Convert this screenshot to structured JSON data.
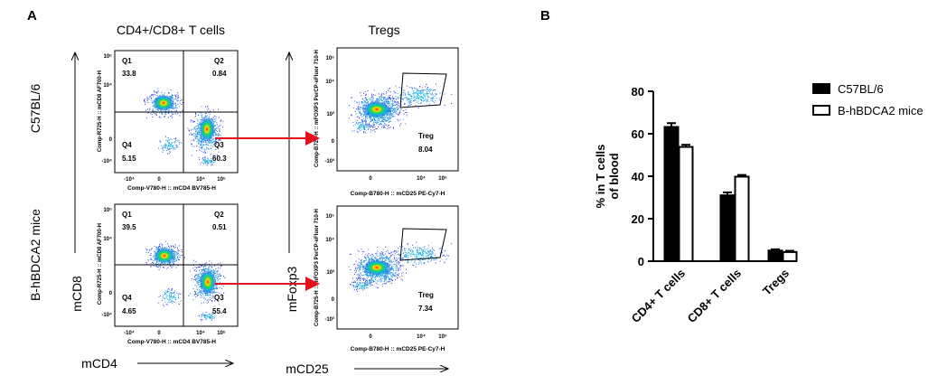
{
  "panel_a": {
    "label": "A",
    "col_titles": [
      "CD4+/CD8+ T cells",
      "Tregs"
    ],
    "row_labels": [
      "C57BL/6",
      "B-hBDCA2 mice"
    ],
    "left_y_axis_label": "mCD8",
    "left_x_axis_label": "mCD4",
    "right_y_axis_label": "mFoxp3",
    "right_x_axis_label": "mCD25",
    "quad_plot_x_axis_label": "Comp-V780-H :: mCD4 BV785-H",
    "quad_plot_y_axis_label": "Comp-R725-H :: mCD8 AF700-H",
    "treg_plot_x_axis_label": "Comp-B780-H :: mCD25 PE-Cy7-H",
    "treg_plot_y_axis_labels": [
      "Comp-B725-H :: mFOXP3 PerCP-eFluor 710-H",
      "Comp-B725-H :: mFOXP3 PerCP-eFluor 710-H"
    ],
    "x_tick_labels": [
      "-10⁴",
      "0",
      "10⁴",
      "10⁵"
    ],
    "y_tick_labels_top": [
      "10⁵",
      "10⁴",
      "0",
      "-10⁴"
    ],
    "y_tick_labels_treg": [
      "10⁵",
      "10⁴",
      "10³",
      "0",
      "-10³"
    ],
    "quadrants": [
      {
        "row": "C57BL/6",
        "Q1": "33.8",
        "Q2": "0.84",
        "Q3": "60.3",
        "Q4": "5.15"
      },
      {
        "row": "B-hBDCA2 mice",
        "Q1": "39.5",
        "Q2": "0.51",
        "Q3": "55.4",
        "Q4": "4.65"
      }
    ],
    "quadrant_names": [
      "Q1",
      "Q2",
      "Q3",
      "Q4"
    ],
    "treg": [
      {
        "row": "C57BL/6",
        "name": "Treg",
        "value": "8.04"
      },
      {
        "row": "B-hBDCA2 mice",
        "name": "Treg",
        "value": "7.34"
      }
    ]
  },
  "panel_b": {
    "label": "B",
    "arrow_color": "#e4101c"
  },
  "chart_data": {
    "type": "bar",
    "categories": [
      "CD4+ T cells",
      "CD8+ T cells",
      "Tregs"
    ],
    "series": [
      {
        "name": "C57BL/6",
        "values": [
          63.2,
          31.0,
          5.0
        ],
        "errors": [
          1.8,
          1.4,
          0.6
        ],
        "fill": "#000000"
      },
      {
        "name": "B-hBDCA2 mice",
        "values": [
          53.8,
          39.8,
          4.3
        ],
        "errors": [
          1.0,
          0.8,
          0.6
        ],
        "fill": "#ffffff"
      }
    ],
    "ylabel": "% in T cells of blood",
    "ylim": [
      0,
      80
    ],
    "yticks": [
      0,
      20,
      40,
      60,
      80
    ],
    "legend_position": "top-right",
    "grid": false
  }
}
